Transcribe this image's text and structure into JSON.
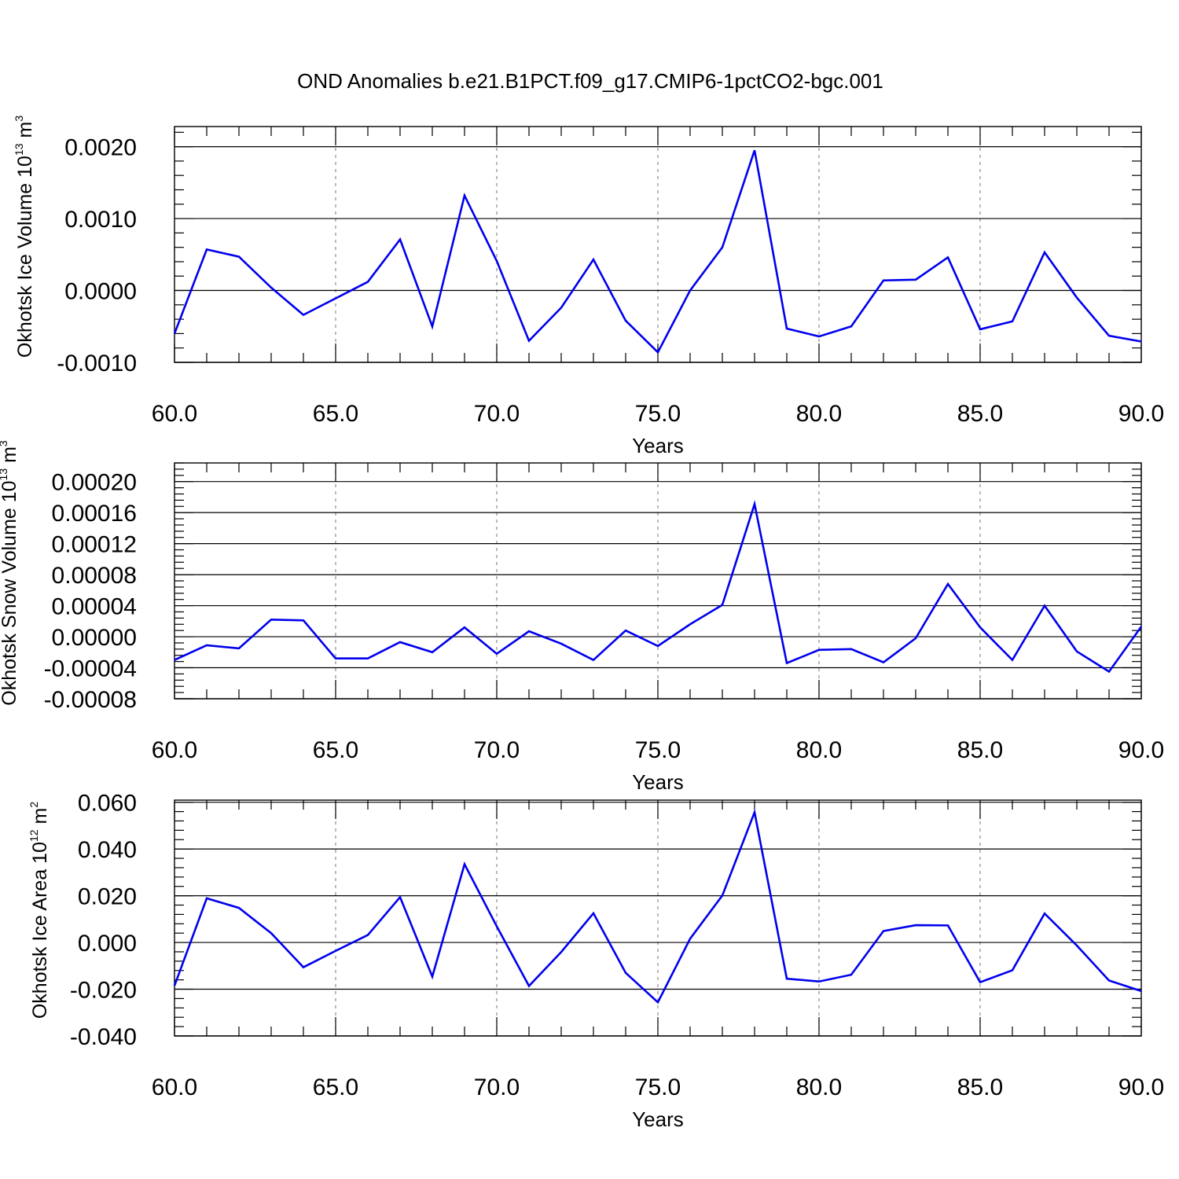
{
  "figure": {
    "title": "OND Anomalies b.e21.B1PCT.f09_g17.CMIP6-1pctCO2-bgc.001"
  },
  "chart_data": [
    {
      "type": "line",
      "title": "OND Anomalies b.e21.B1PCT.f09_g17.CMIP6-1pctCO2-bgc.001",
      "xlabel": "Years",
      "ylabel": "Okhotsk Ice Volume 10",
      "ylabel_exponent": "13",
      "ylabel_unit": " m",
      "ylabel_unit_exponent": "3",
      "xlim": [
        60,
        90
      ],
      "ylim": [
        -0.001,
        0.00228
      ],
      "x_ticks": [
        60,
        65,
        70,
        75,
        80,
        85,
        90
      ],
      "x_tick_labels": [
        "60.0",
        "65.0",
        "70.0",
        "75.0",
        "80.0",
        "85.0",
        "90.0"
      ],
      "y_ticks": [
        -0.001,
        0.0,
        0.001,
        0.002
      ],
      "y_tick_labels": [
        "-0.0010",
        "0.0000",
        "0.0010",
        "0.0020"
      ],
      "grid": "x-dashed",
      "line_color": "#0000ee",
      "x": [
        60,
        61,
        62,
        63,
        64,
        65,
        66,
        67,
        68,
        69,
        70,
        71,
        72,
        73,
        74,
        75,
        76,
        77,
        78,
        79,
        80,
        81,
        82,
        83,
        84,
        85,
        86,
        87,
        88,
        89,
        90
      ],
      "series": [
        {
          "values": [
            -0.0006,
            0.00057,
            0.00047,
            4e-05,
            -0.00034,
            -0.00011,
            0.00012,
            0.00071,
            -0.0005,
            0.00132,
            0.00041,
            -0.0007,
            -0.00024,
            0.00043,
            -0.00042,
            -0.00086,
            0.0,
            0.0006,
            0.00195,
            -0.00053,
            -0.00064,
            -0.0005,
            0.00014,
            0.00015,
            0.00046,
            -0.00054,
            -0.00043,
            0.00053,
            -0.0001,
            -0.00063,
            -0.00071
          ]
        }
      ]
    },
    {
      "type": "line",
      "xlabel": "Years",
      "ylabel": "Okhotsk Snow Volume 10",
      "ylabel_exponent": "13",
      "ylabel_unit": " m",
      "ylabel_unit_exponent": "3",
      "xlim": [
        60,
        90
      ],
      "ylim": [
        -8e-05,
        0.000224
      ],
      "x_ticks": [
        60,
        65,
        70,
        75,
        80,
        85,
        90
      ],
      "x_tick_labels": [
        "60.0",
        "65.0",
        "70.0",
        "75.0",
        "80.0",
        "85.0",
        "90.0"
      ],
      "y_ticks": [
        -8e-05,
        -4e-05,
        0.0,
        4e-05,
        8e-05,
        0.00012,
        0.00016,
        0.0002
      ],
      "y_tick_labels": [
        "-0.00008",
        "-0.00004",
        "0.00000",
        "0.00004",
        "0.00008",
        "0.00012",
        "0.00016",
        "0.00020"
      ],
      "grid": "x-dashed",
      "line_color": "#0000ee",
      "x": [
        60,
        61,
        62,
        63,
        64,
        65,
        66,
        67,
        68,
        69,
        70,
        71,
        72,
        73,
        74,
        75,
        76,
        77,
        78,
        79,
        80,
        81,
        82,
        83,
        84,
        85,
        86,
        87,
        88,
        89,
        90
      ],
      "series": [
        {
          "values": [
            -3e-05,
            -1.1e-05,
            -1.5e-05,
            2.2e-05,
            2.1e-05,
            -2.8e-05,
            -2.8e-05,
            -7e-06,
            -2e-05,
            1.2e-05,
            -2.2e-05,
            7e-06,
            -9e-06,
            -3e-05,
            8e-06,
            -1.2e-05,
            1.6e-05,
            4.1e-05,
            0.000171,
            -3.4e-05,
            -1.7e-05,
            -1.6e-05,
            -3.3e-05,
            -2e-06,
            6.8e-05,
            1.2e-05,
            -3e-05,
            4e-05,
            -1.9e-05,
            -4.5e-05,
            1.3e-05
          ]
        }
      ]
    },
    {
      "type": "line",
      "xlabel": "Years",
      "ylabel": "Okhotsk Ice Area 10",
      "ylabel_exponent": "12",
      "ylabel_unit": " m",
      "ylabel_unit_exponent": "2",
      "xlim": [
        60,
        90
      ],
      "ylim": [
        -0.04,
        0.0609
      ],
      "x_ticks": [
        60,
        65,
        70,
        75,
        80,
        85,
        90
      ],
      "x_tick_labels": [
        "60.0",
        "65.0",
        "70.0",
        "75.0",
        "80.0",
        "85.0",
        "90.0"
      ],
      "y_ticks": [
        -0.04,
        -0.02,
        0.0,
        0.02,
        0.04,
        0.06
      ],
      "y_tick_labels": [
        "-0.040",
        "-0.020",
        "0.000",
        "0.020",
        "0.040",
        "0.060"
      ],
      "grid": "x-dashed",
      "line_color": "#0000ee",
      "x": [
        60,
        61,
        62,
        63,
        64,
        65,
        66,
        67,
        68,
        69,
        70,
        71,
        72,
        73,
        74,
        75,
        76,
        77,
        78,
        79,
        80,
        81,
        82,
        83,
        84,
        85,
        86,
        87,
        88,
        89,
        90
      ],
      "series": [
        {
          "values": [
            -0.0185,
            0.0189,
            0.0148,
            0.004,
            -0.0106,
            -0.0036,
            0.0032,
            0.0194,
            -0.0146,
            0.0335,
            0.0069,
            -0.0186,
            -0.0041,
            0.0125,
            -0.013,
            -0.0256,
            0.0016,
            0.0201,
            0.0557,
            -0.0155,
            -0.0167,
            -0.0138,
            0.0049,
            0.0074,
            0.0073,
            -0.017,
            -0.0119,
            0.0124,
            -0.0013,
            -0.0163,
            -0.0208
          ]
        }
      ]
    }
  ]
}
